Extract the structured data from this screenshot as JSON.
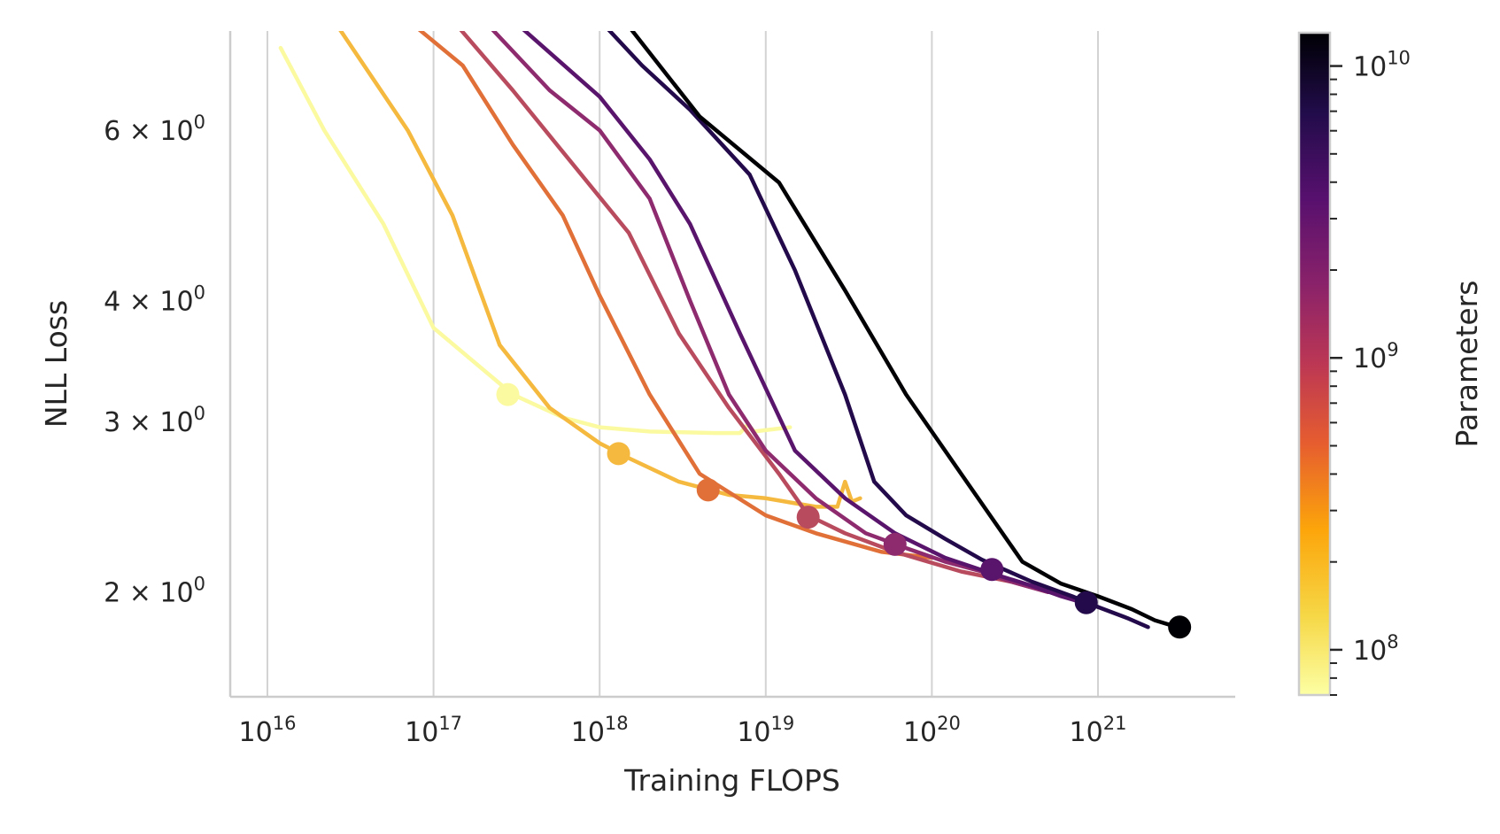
{
  "chart_data": {
    "type": "line",
    "title": "",
    "xlabel": "Training FLOPS",
    "ylabel": "NLL Loss",
    "xscale": "log",
    "yscale": "log",
    "xlim": [
      5500000000000000.0,
      1.1e+22
    ],
    "ylim": [
      1.65,
      7.6
    ],
    "grid": "vertical major gridlines",
    "x_ticks": [
      {
        "base": "10",
        "exp": "16"
      },
      {
        "base": "10",
        "exp": "17"
      },
      {
        "base": "10",
        "exp": "18"
      },
      {
        "base": "10",
        "exp": "19"
      },
      {
        "base": "10",
        "exp": "20"
      },
      {
        "base": "10",
        "exp": "21"
      }
    ],
    "y_ticks": [
      {
        "mant": "2 × 10",
        "exp": "0",
        "value": 2
      },
      {
        "mant": "3 × 10",
        "exp": "0",
        "value": 3
      },
      {
        "mant": "4 × 10",
        "exp": "0",
        "value": 4
      },
      {
        "mant": "6 × 10",
        "exp": "0",
        "value": 6
      }
    ],
    "colorbar": {
      "label": "Parameters",
      "scale": "log",
      "range": [
        70000000.0,
        13000000000.0
      ],
      "colormap": "inferno_r",
      "ticks": [
        {
          "base": "10",
          "exp": "8"
        },
        {
          "base": "10",
          "exp": "9"
        },
        {
          "base": "10",
          "exp": "10"
        }
      ]
    },
    "series": [
      {
        "params": 85000000.0,
        "color": "#fbfaa0",
        "points": [
          [
            1.2e+16,
            7.3
          ],
          [
            2.2e+16,
            6.0
          ],
          [
            5e+16,
            4.8
          ],
          [
            1e+17,
            3.75
          ],
          [
            3e+17,
            3.2
          ],
          [
            6e+17,
            3.03
          ],
          [
            1e+18,
            2.96
          ],
          [
            2e+18,
            2.93
          ],
          [
            5e+18,
            2.92
          ],
          [
            7e+18,
            2.92
          ],
          [
            7.8e+18,
            2.98
          ],
          [
            8.5e+18,
            2.93
          ],
          [
            1.4e+19,
            2.96
          ]
        ],
        "marker": [
          2.8e+17,
          3.2
        ]
      },
      {
        "params": 220000000.0,
        "color": "#f4b93e",
        "points": [
          [
            2.5e+16,
            7.8
          ],
          [
            7e+16,
            6.0
          ],
          [
            1.3e+17,
            4.9
          ],
          [
            2.5e+17,
            3.6
          ],
          [
            5e+17,
            3.1
          ],
          [
            1e+18,
            2.85
          ],
          [
            1.5e+18,
            2.75
          ],
          [
            3e+18,
            2.6
          ],
          [
            6e+18,
            2.52
          ],
          [
            1e+19,
            2.5
          ],
          [
            2e+19,
            2.45
          ],
          [
            2.7e+19,
            2.45
          ],
          [
            3e+19,
            2.6
          ],
          [
            3.3e+19,
            2.48
          ],
          [
            3.7e+19,
            2.5
          ]
        ],
        "marker": [
          1.3e+18,
          2.78
        ]
      },
      {
        "params": 400000000.0,
        "color": "#e07038",
        "points": [
          [
            7e+16,
            7.8
          ],
          [
            1.5e+17,
            7.0
          ],
          [
            3e+17,
            5.8
          ],
          [
            6e+17,
            4.9
          ],
          [
            1e+18,
            4.05
          ],
          [
            2e+18,
            3.2
          ],
          [
            4e+18,
            2.65
          ],
          [
            1e+19,
            2.4
          ],
          [
            2e+19,
            2.3
          ],
          [
            5e+19,
            2.2
          ],
          [
            1e+20,
            2.17
          ]
        ],
        "marker": [
          4.5e+18,
          2.55
        ]
      },
      {
        "params": 800000000.0,
        "color": "#b94b5e",
        "points": [
          [
            1.3e+17,
            7.8
          ],
          [
            3e+17,
            6.6
          ],
          [
            6e+17,
            5.7
          ],
          [
            1.5e+18,
            4.7
          ],
          [
            3e+18,
            3.7
          ],
          [
            6e+18,
            3.1
          ],
          [
            1.2e+19,
            2.65
          ],
          [
            1.8e+19,
            2.4
          ],
          [
            3e+19,
            2.3
          ],
          [
            6e+19,
            2.2
          ],
          [
            1.5e+20,
            2.1
          ],
          [
            3e+20,
            2.05
          ],
          [
            5e+20,
            2.0
          ]
        ],
        "marker": [
          1.8e+19,
          2.39
        ]
      },
      {
        "params": 1500000000.0,
        "color": "#8d2b6e",
        "points": [
          [
            2e+17,
            7.8
          ],
          [
            5e+17,
            6.6
          ],
          [
            1e+18,
            6.0
          ],
          [
            2e+18,
            5.1
          ],
          [
            3.5e+18,
            4.0
          ],
          [
            6e+18,
            3.2
          ],
          [
            1e+19,
            2.8
          ],
          [
            2e+19,
            2.5
          ],
          [
            4e+19,
            2.3
          ],
          [
            7e+19,
            2.22
          ],
          [
            1.2e+20,
            2.15
          ],
          [
            2e+20,
            2.1
          ],
          [
            3e+20,
            2.05
          ],
          [
            5e+20,
            2.0
          ]
        ],
        "marker": [
          6e+19,
          2.24
        ]
      },
      {
        "params": 3000000000.0,
        "color": "#59146b",
        "points": [
          [
            3e+17,
            7.8
          ],
          [
            1e+18,
            6.5
          ],
          [
            2e+18,
            5.6
          ],
          [
            3.5e+18,
            4.8
          ],
          [
            7e+18,
            3.7
          ],
          [
            1.5e+19,
            2.8
          ],
          [
            3e+19,
            2.5
          ],
          [
            6e+19,
            2.3
          ],
          [
            1.2e+20,
            2.17
          ],
          [
            2.3e+20,
            2.09
          ],
          [
            4e+20,
            2.03
          ],
          [
            6e+20,
            1.98
          ],
          [
            1e+21,
            1.93
          ]
        ],
        "marker": [
          2.3e+20,
          2.11
        ]
      },
      {
        "params": 6000000000.0,
        "color": "#230a4a",
        "points": [
          [
            1e+18,
            7.8
          ],
          [
            1.8e+18,
            7.0
          ],
          [
            3.5e+18,
            6.3
          ],
          [
            8e+18,
            5.4
          ],
          [
            1.5e+19,
            4.3
          ],
          [
            3e+19,
            3.2
          ],
          [
            4.5e+19,
            2.6
          ],
          [
            7e+19,
            2.4
          ],
          [
            1.2e+20,
            2.27
          ],
          [
            2e+20,
            2.16
          ],
          [
            4e+20,
            2.05
          ],
          [
            7e+20,
            1.98
          ],
          [
            1e+21,
            1.93
          ],
          [
            1.5e+21,
            1.88
          ],
          [
            2e+21,
            1.84
          ]
        ],
        "marker": [
          8.5e+20,
          1.95
        ]
      },
      {
        "params": 10000000000.0,
        "color": "#000004",
        "points": [
          [
            1.4e+18,
            7.8
          ],
          [
            4e+18,
            6.2
          ],
          [
            1.2e+19,
            5.3
          ],
          [
            3e+19,
            4.1
          ],
          [
            7e+19,
            3.2
          ],
          [
            1.5e+20,
            2.65
          ],
          [
            3.5e+20,
            2.15
          ],
          [
            6e+20,
            2.04
          ],
          [
            1e+21,
            1.98
          ],
          [
            1.6e+21,
            1.92
          ],
          [
            2.2e+21,
            1.87
          ],
          [
            3e+21,
            1.84
          ]
        ],
        "marker": [
          3.1e+21,
          1.84
        ]
      }
    ]
  }
}
